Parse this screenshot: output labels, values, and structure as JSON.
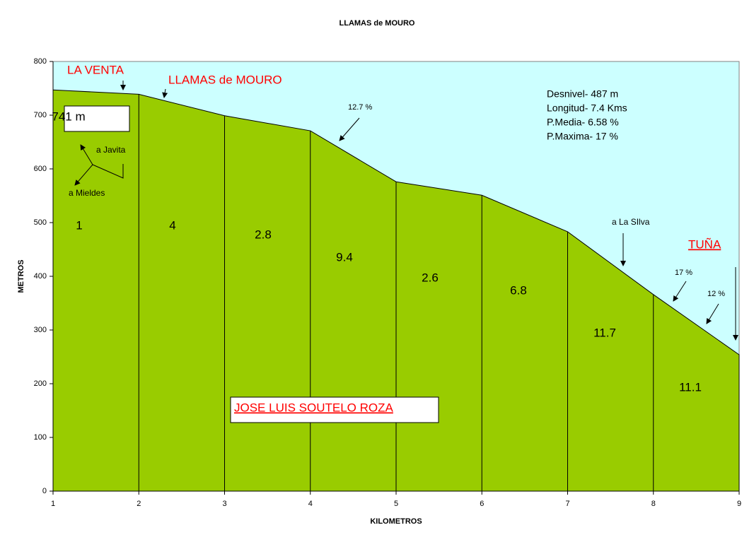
{
  "chart_data": {
    "type": "area",
    "title": "LLAMAS de MOURO",
    "x_label": "KILOMETROS",
    "y_label": "METROS",
    "x": [
      1,
      2,
      3,
      4,
      5,
      6,
      7,
      8,
      9
    ],
    "values": [
      747,
      739,
      699,
      671,
      576,
      551,
      483,
      366,
      254
    ],
    "color": "#99cc00",
    "background": "#ccffff",
    "drop_lines": true,
    "xlim": [
      1,
      9
    ],
    "xticks": [
      1,
      2,
      3,
      4,
      5,
      6,
      7,
      8,
      9
    ],
    "ylim": [
      0,
      800
    ],
    "yticks": [
      0,
      100,
      200,
      300,
      400,
      500,
      600,
      700,
      800
    ],
    "segment_gradients": [
      1,
      4,
      2.8,
      9.4,
      2.6,
      6.8,
      11.7,
      11.1
    ],
    "annotations": [
      "LA VENTA",
      "LLAMAS de MOURO",
      "741 m",
      "a Javita",
      "a Mieldes",
      "12.7 %",
      "Desnivel- 487 m",
      "Longitud- 7.4 Kms",
      "P.Media- 6.58 %",
      "P.Maxima- 17 %",
      "a La SIlva",
      "TUÑA",
      "17 %",
      "12 %",
      "JOSE LUIS SOUTELO ROZA"
    ]
  }
}
